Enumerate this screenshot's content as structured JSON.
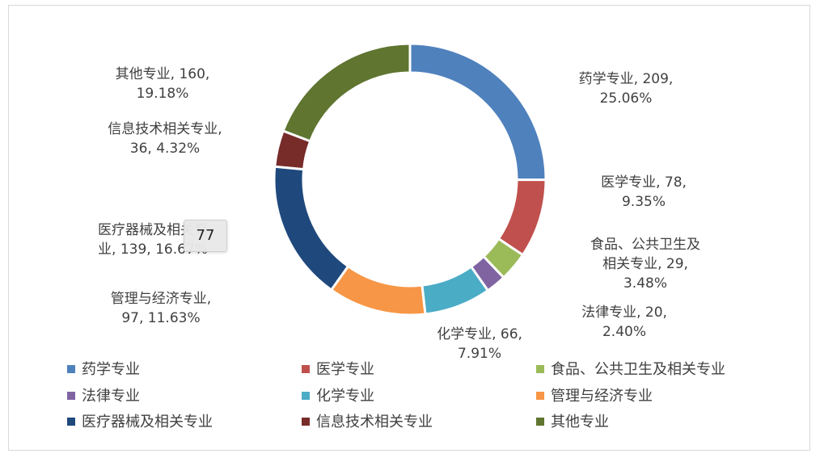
{
  "chart_data": {
    "type": "pie",
    "variant": "doughnut",
    "title": "",
    "slices": [
      {
        "name": "药学专业",
        "value": 209,
        "percent": "25.06%",
        "label": "药学专业, 209,\n25.06%",
        "color": "#4f81bd"
      },
      {
        "name": "医学专业",
        "value": 78,
        "percent": "9.35%",
        "label": "医学专业, 78,\n9.35%",
        "color": "#c0504d"
      },
      {
        "name": "食品、公共卫生及相关专业",
        "value": 29,
        "percent": "3.48%",
        "label": "食品、公共卫生及\n相关专业, 29,\n3.48%",
        "color": "#9bbb59"
      },
      {
        "name": "法律专业",
        "value": 20,
        "percent": "2.40%",
        "label": "法律专业, 20,\n2.40%",
        "color": "#8064a2"
      },
      {
        "name": "化学专业",
        "value": 66,
        "percent": "7.91%",
        "label": "化学专业, 66,\n7.91%",
        "color": "#4bacc6"
      },
      {
        "name": "管理与经济专业",
        "value": 97,
        "percent": "11.63%",
        "label": "管理与经济专业,\n97, 11.63%",
        "color": "#f79646"
      },
      {
        "name": "医疗器械及相关专业",
        "value": 139,
        "percent": "16.67%",
        "label": "医疗器械及相关专\n业, 139, 16.67%",
        "color": "#1f497d"
      },
      {
        "name": "信息技术相关专业",
        "value": 36,
        "percent": "4.32%",
        "label": "信息技术相关专业,\n36, 4.32%",
        "color": "#772c2a"
      },
      {
        "name": "其他专业",
        "value": 160,
        "percent": "19.18%",
        "label": "其他专业, 160,\n19.18%",
        "color": "#5f7530"
      }
    ],
    "legend": {
      "position": "bottom",
      "columns": 3
    },
    "tooltip": {
      "text": "77"
    }
  }
}
